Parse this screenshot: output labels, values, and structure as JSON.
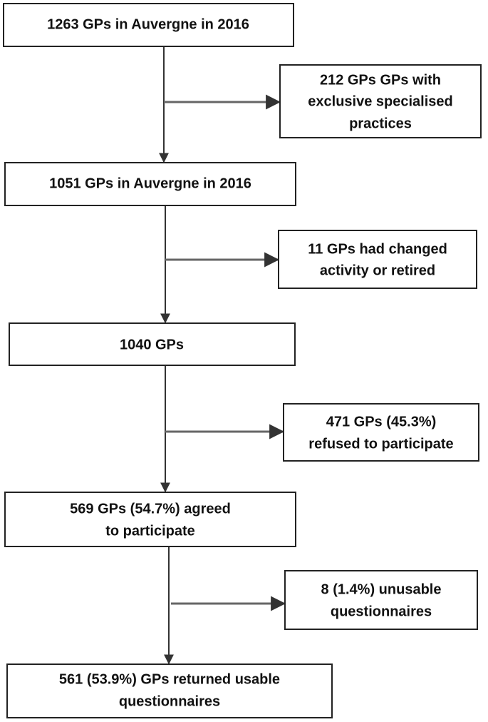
{
  "nodes": [
    {
      "lines": [
        "1263 GPs in Auvergne in 2016"
      ]
    },
    {
      "lines": [
        "212 GPs GPs with",
        "exclusive specialised",
        "practices"
      ]
    },
    {
      "lines": [
        "1051 GPs in Auvergne in 2016"
      ]
    },
    {
      "lines": [
        "11 GPs had changed",
        "activity or retired"
      ]
    },
    {
      "lines": [
        "1040 GPs"
      ]
    },
    {
      "lines": [
        "471 GPs (45.3%)",
        "refused to participate"
      ]
    },
    {
      "lines": [
        "569 GPs (54.7%) agreed",
        "to participate"
      ]
    },
    {
      "lines": [
        "8 (1.4%) unusable",
        "questionnaires"
      ]
    },
    {
      "lines": [
        "561 (53.9%) GPs returned usable",
        "questionnaires"
      ]
    }
  ]
}
